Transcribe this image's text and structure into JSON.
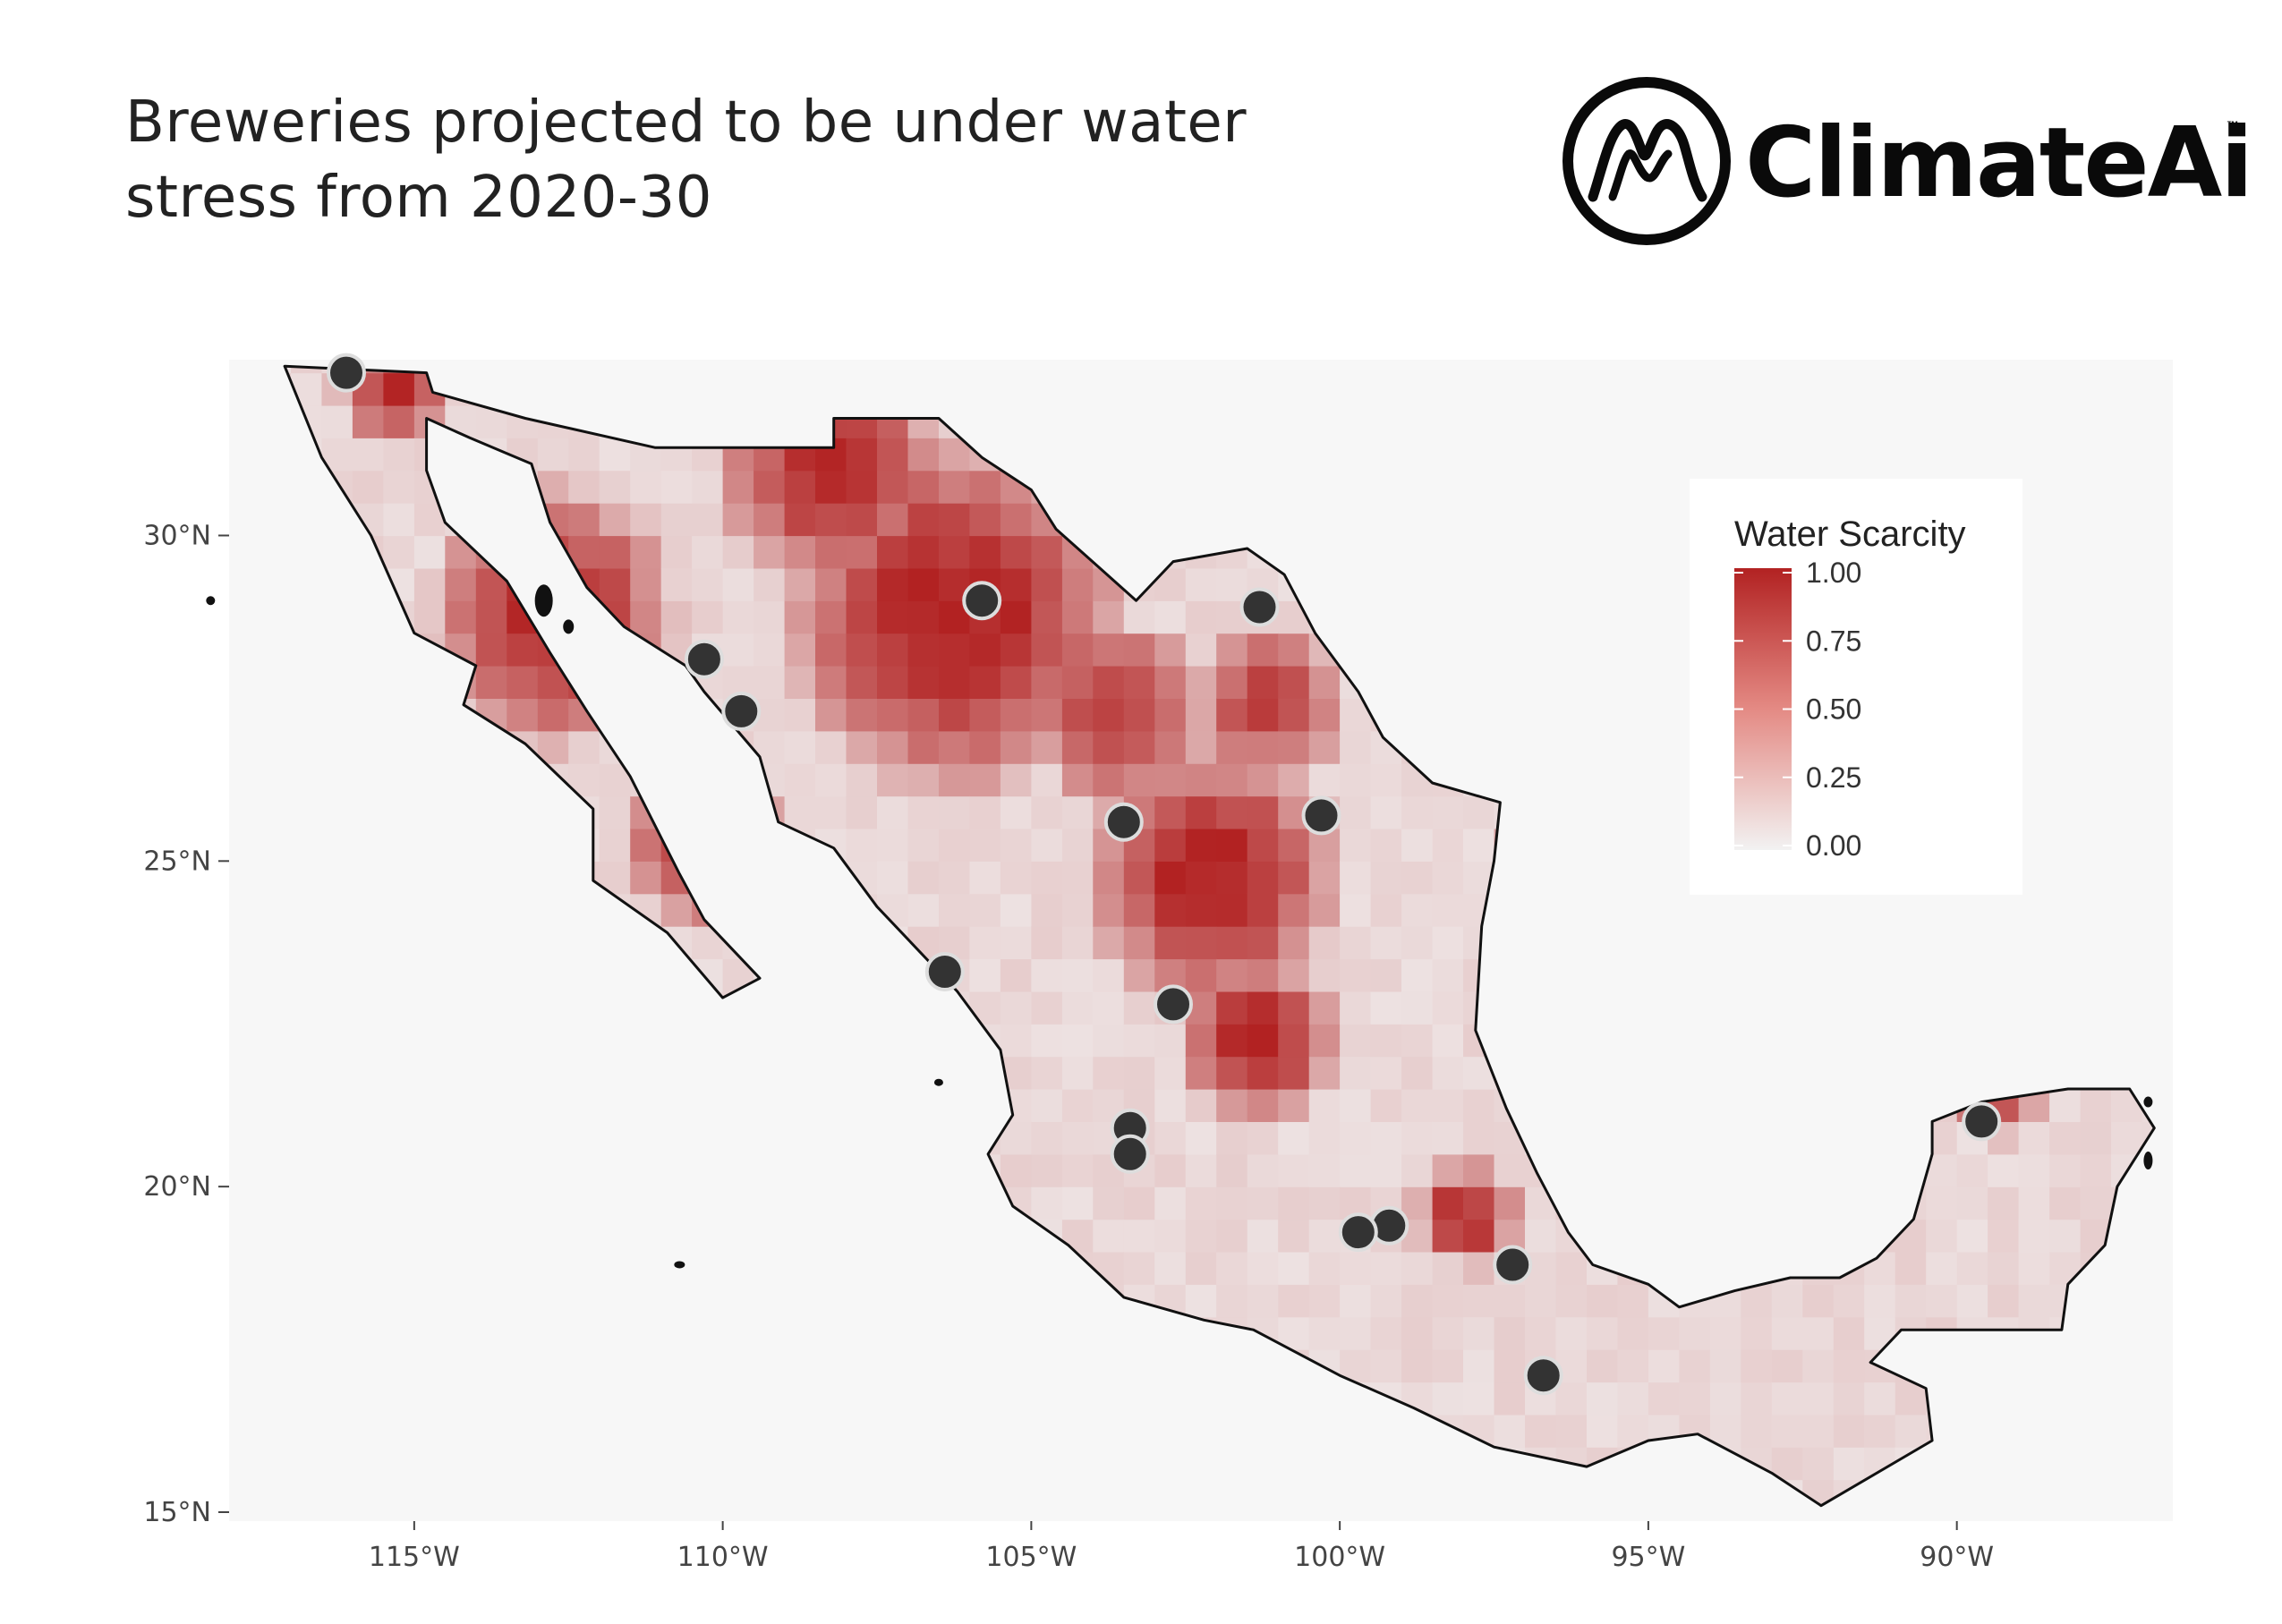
{
  "header": {
    "title_line1": "Breweries projected to be under water",
    "title_line2": "stress from 2020-30"
  },
  "logo": {
    "text": "ClimateAi",
    "tm": "™",
    "icon": "mountain-circle-logo-icon"
  },
  "map": {
    "colors": {
      "high": "#b22222",
      "low": "#f2f2f2",
      "panel": "#f7f7f7",
      "land_outline": "#111111",
      "marker": "#333333"
    },
    "x_ticks": [
      {
        "lon": -115,
        "label": "115°W"
      },
      {
        "lon": -110,
        "label": "110°W"
      },
      {
        "lon": -105,
        "label": "105°W"
      },
      {
        "lon": -100,
        "label": "100°W"
      },
      {
        "lon": -95,
        "label": "95°W"
      },
      {
        "lon": -90,
        "label": "90°W"
      }
    ],
    "y_ticks": [
      {
        "lat": 30,
        "label": "30°N"
      },
      {
        "lat": 25,
        "label": "25°N"
      },
      {
        "lat": 20,
        "label": "20°N"
      },
      {
        "lat": 15,
        "label": "15°N"
      }
    ],
    "extent": {
      "lon": [
        -118,
        -86.5
      ],
      "lat": [
        15,
        32.7
      ]
    },
    "legend": {
      "title": "Water Scarcity",
      "ticks": [
        "1.00",
        "0.75",
        "0.50",
        "0.25",
        "0.00"
      ],
      "range": [
        0,
        1
      ]
    },
    "breweries": [
      {
        "lon": -116.1,
        "lat": 32.5
      },
      {
        "lon": -105.8,
        "lat": 29.0
      },
      {
        "lon": -101.3,
        "lat": 28.9
      },
      {
        "lon": -110.3,
        "lat": 28.1
      },
      {
        "lon": -109.7,
        "lat": 27.3
      },
      {
        "lon": -103.5,
        "lat": 25.6
      },
      {
        "lon": -100.3,
        "lat": 25.7
      },
      {
        "lon": -106.4,
        "lat": 23.3
      },
      {
        "lon": -102.7,
        "lat": 22.8
      },
      {
        "lon": -103.4,
        "lat": 20.9
      },
      {
        "lon": -103.4,
        "lat": 20.5
      },
      {
        "lon": -89.6,
        "lat": 21.0
      },
      {
        "lon": -99.2,
        "lat": 19.4
      },
      {
        "lon": -99.7,
        "lat": 19.3
      },
      {
        "lon": -97.2,
        "lat": 18.8
      },
      {
        "lon": -96.7,
        "lat": 17.1
      }
    ]
  }
}
